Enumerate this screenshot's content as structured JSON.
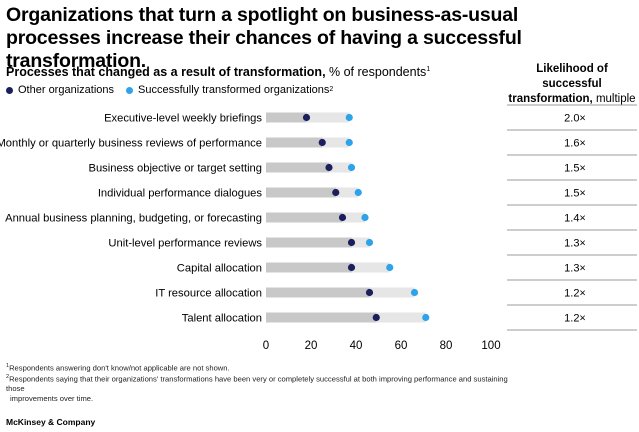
{
  "title": "Organizations that turn a spotlight on business-as-usual processes increase their chances of having a successful transformation.",
  "subtitle_bold": "Processes that changed as a result of transformation,",
  "subtitle_rest": " % of respondents",
  "subtitle_sup": "1",
  "legend": {
    "series1": "Other organizations",
    "series2": "Successfully transformed organizations",
    "series2_sup": "2"
  },
  "right_header": {
    "line1": "Likelihood of successful",
    "line2_bold": "transformation,",
    "line2_rest": " multiple"
  },
  "colors": {
    "other": "#1b1f5c",
    "success": "#2ea3ea",
    "bar_other": "#c8c8c8",
    "bar_success": "#e6e6e6",
    "divider": "#7a7a7a"
  },
  "chart_data": {
    "type": "dot-bar",
    "categories": [
      "Executive-level weekly briefings",
      "Monthly or quarterly business reviews of performance",
      "Business objective or target setting",
      "Individual performance dialogues",
      "Annual business planning, budgeting, or forecasting",
      "Unit-level performance reviews",
      "Capital allocation",
      "IT resource allocation",
      "Talent allocation"
    ],
    "series": [
      {
        "name": "Other organizations",
        "values": [
          18,
          25,
          28,
          31,
          34,
          38,
          38,
          46,
          49
        ]
      },
      {
        "name": "Successfully transformed organizations",
        "values": [
          37,
          37,
          38,
          41,
          44,
          46,
          55,
          66,
          71
        ]
      }
    ],
    "multiples": [
      "2.0×",
      "1.6×",
      "1.5×",
      "1.5×",
      "1.4×",
      "1.3×",
      "1.3×",
      "1.2×",
      "1.2×"
    ],
    "xticks": [
      0,
      20,
      40,
      60,
      80,
      100
    ],
    "xlim": [
      0,
      100
    ]
  },
  "footnotes": {
    "fn1_sup": "1",
    "fn1": "Respondents answering don't know/not applicable are not shown.",
    "fn2_sup": "2",
    "fn2_line1": "Respondents saying that their organizations' transformations have been very or completely successful at both improving performance and sustaining those",
    "fn2_line2": "improvements over time."
  },
  "brand": "McKinsey & Company"
}
